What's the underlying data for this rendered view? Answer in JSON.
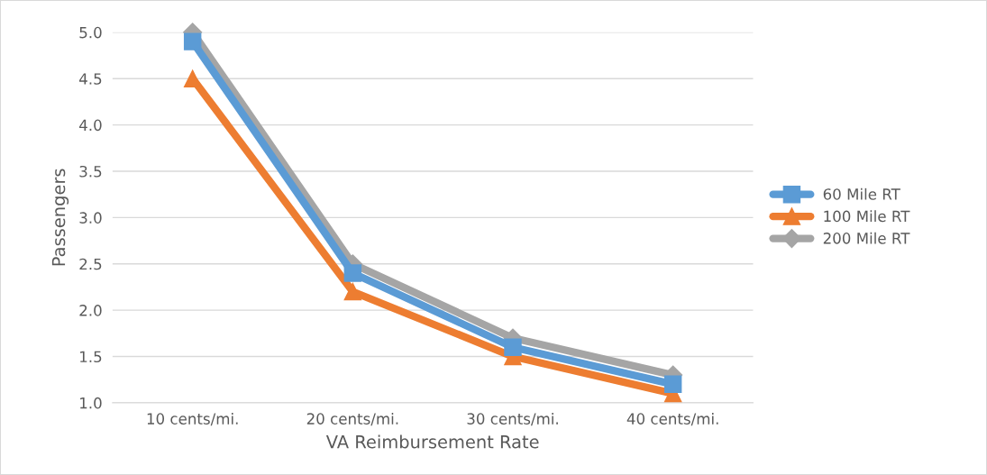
{
  "chart_data": {
    "type": "line",
    "xlabel": "VA Reimbursement Rate",
    "ylabel": "Passengers",
    "categories": [
      "10 cents/mi.",
      "20 cents/mi.",
      "30 cents/mi.",
      "40 cents/mi."
    ],
    "series": [
      {
        "name": "60 Mile RT",
        "color": "#5b9bd5",
        "marker": "square",
        "values": [
          4.9,
          2.4,
          1.6,
          1.2
        ]
      },
      {
        "name": "100 Mile RT",
        "color": "#ed7d31",
        "marker": "triangle",
        "values": [
          4.5,
          2.2,
          1.5,
          1.1
        ]
      },
      {
        "name": "200 Mile RT",
        "color": "#a5a5a5",
        "marker": "diamond",
        "values": [
          5.0,
          2.5,
          1.7,
          1.3
        ]
      }
    ],
    "ylim": [
      1.0,
      5.0
    ],
    "yticks": [
      {
        "value": 1.0,
        "label": "1.0"
      },
      {
        "value": 1.5,
        "label": "1.5"
      },
      {
        "value": 2.0,
        "label": "2.0"
      },
      {
        "value": 2.5,
        "label": "2.5"
      },
      {
        "value": 3.0,
        "label": "3.0"
      },
      {
        "value": 3.5,
        "label": "3.5"
      },
      {
        "value": 4.0,
        "label": "4.0"
      },
      {
        "value": 4.5,
        "label": "4.5"
      },
      {
        "value": 5.0,
        "label": "5.0"
      }
    ],
    "grid": "y",
    "legend": "right"
  }
}
